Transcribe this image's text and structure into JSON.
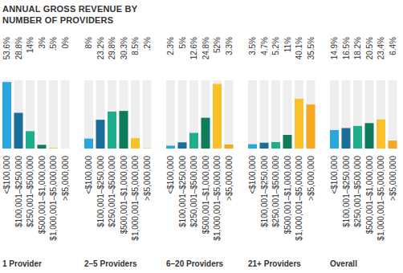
{
  "chart_data": {
    "type": "bar",
    "title": "ANNUAL GROSS REVENUE BY NUMBER OF PROVIDERS",
    "categories": [
      "<$100,000",
      "$100,001–$250,000",
      "$250,001–$500,000",
      "$500,001–$1,000,000",
      "$1,000,001–$5,000,000",
      ">$5,000,000"
    ],
    "colors": [
      "#2aa7df",
      "#1a6f9a",
      "#1fae8c",
      "#0e7c5b",
      "#fbc12b",
      "#f6a722"
    ],
    "series": [
      {
        "name": "1 Provider",
        "values": [
          53.6,
          28.8,
          14,
          3,
          0.5,
          0
        ],
        "value_labels": [
          "53.6%",
          "28.8%",
          "14%",
          "3%",
          ".5%",
          "0%"
        ]
      },
      {
        "name": "2–5 Providers",
        "values": [
          8,
          23.2,
          29.8,
          30.3,
          8.5,
          0.2
        ],
        "value_labels": [
          "8%",
          "23.2%",
          "29.8%",
          "30.3%",
          "8.5%",
          ".2%"
        ]
      },
      {
        "name": "6–20 Providers",
        "values": [
          2.3,
          5,
          12.6,
          24.8,
          52,
          3.3
        ],
        "value_labels": [
          "2.3%",
          "5%",
          "12.6%",
          "24.8%",
          "52%",
          "3.3%"
        ]
      },
      {
        "name": "21+ Providers",
        "values": [
          3.5,
          4.7,
          5.2,
          11,
          40.1,
          35.5
        ],
        "value_labels": [
          "3.5%",
          "4.7%",
          "5.2%",
          "11%",
          "40.1%",
          "35.5%"
        ]
      },
      {
        "name": "Overall",
        "values": [
          14.9,
          16.5,
          18.2,
          20.5,
          23.4,
          6.4
        ],
        "value_labels": [
          "14.9%",
          "16.5%",
          "18.2%",
          "20.5%",
          "23.4%",
          "6.4%"
        ]
      }
    ],
    "ylim": [
      0,
      55
    ],
    "data_labels": true,
    "tick_labels": "x"
  }
}
